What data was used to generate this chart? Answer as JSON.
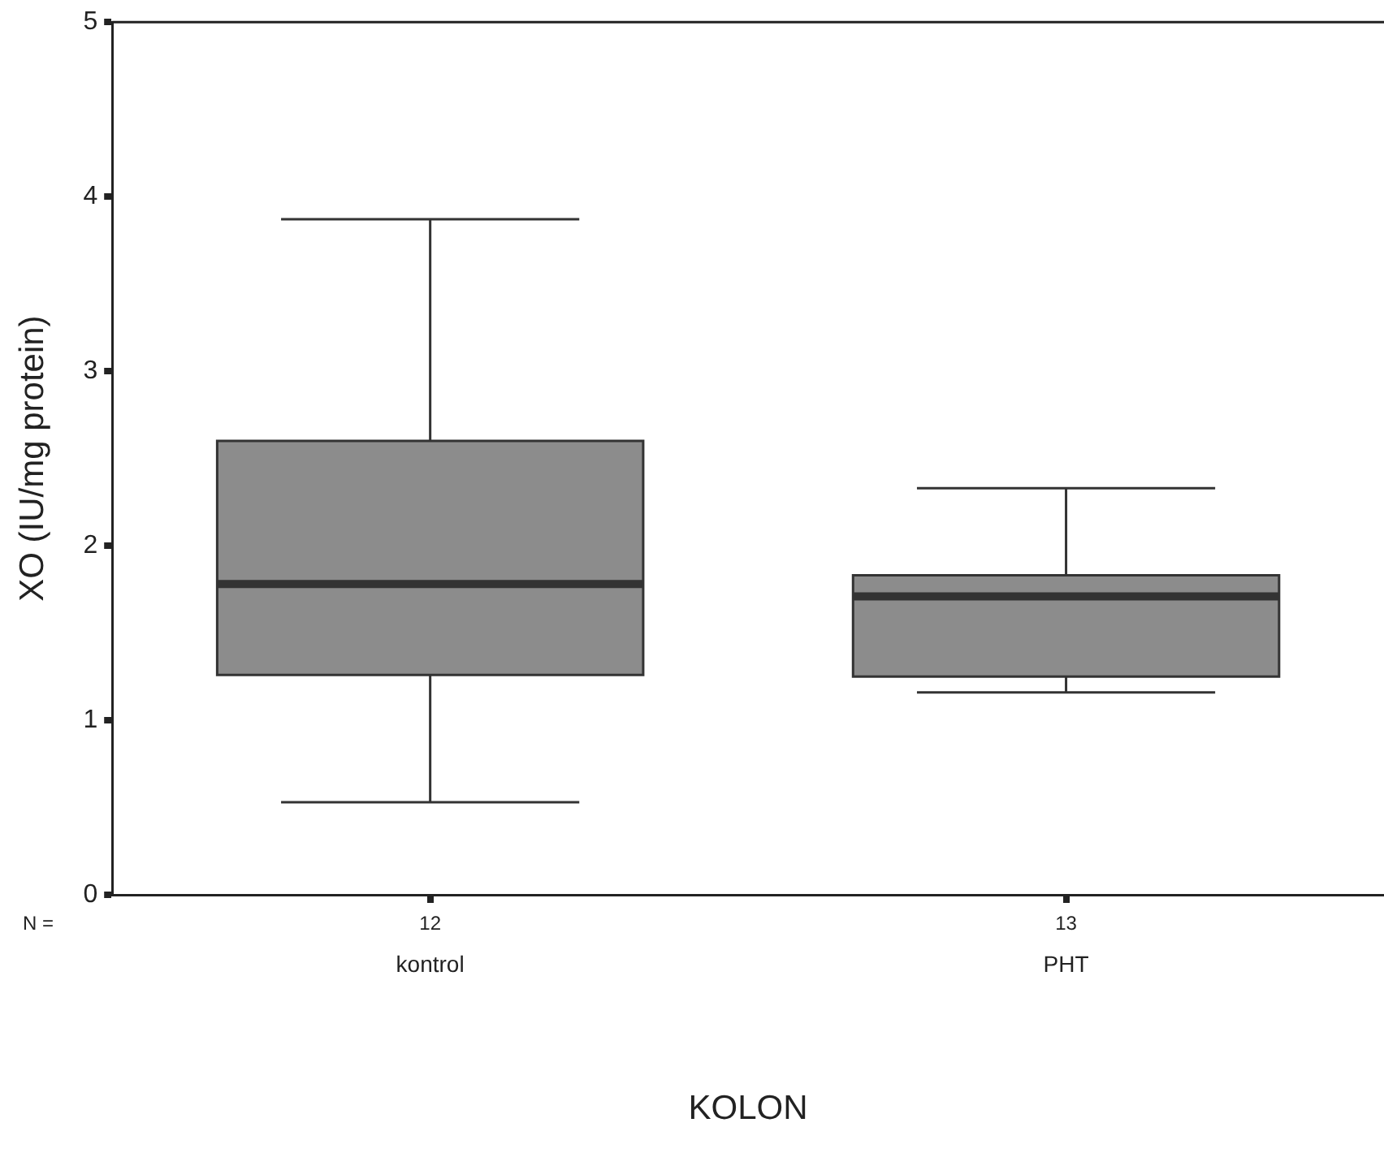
{
  "chart_data": {
    "type": "box",
    "xlabel": "KOLON",
    "ylabel": "XO (IU/mg protein)",
    "categories": [
      "kontrol",
      "PHT"
    ],
    "boxes": [
      {
        "low": 0.53,
        "q1": 1.26,
        "median": 1.78,
        "q3": 2.6,
        "high": 3.87
      },
      {
        "low": 1.16,
        "q1": 1.25,
        "median": 1.71,
        "q3": 1.83,
        "high": 2.33
      }
    ],
    "color": "#8c8c8c",
    "ylim": [
      0,
      5
    ],
    "yticks": [
      0,
      1,
      2,
      3,
      4,
      5
    ],
    "annotations": [
      "N =",
      "12",
      "13"
    ]
  }
}
